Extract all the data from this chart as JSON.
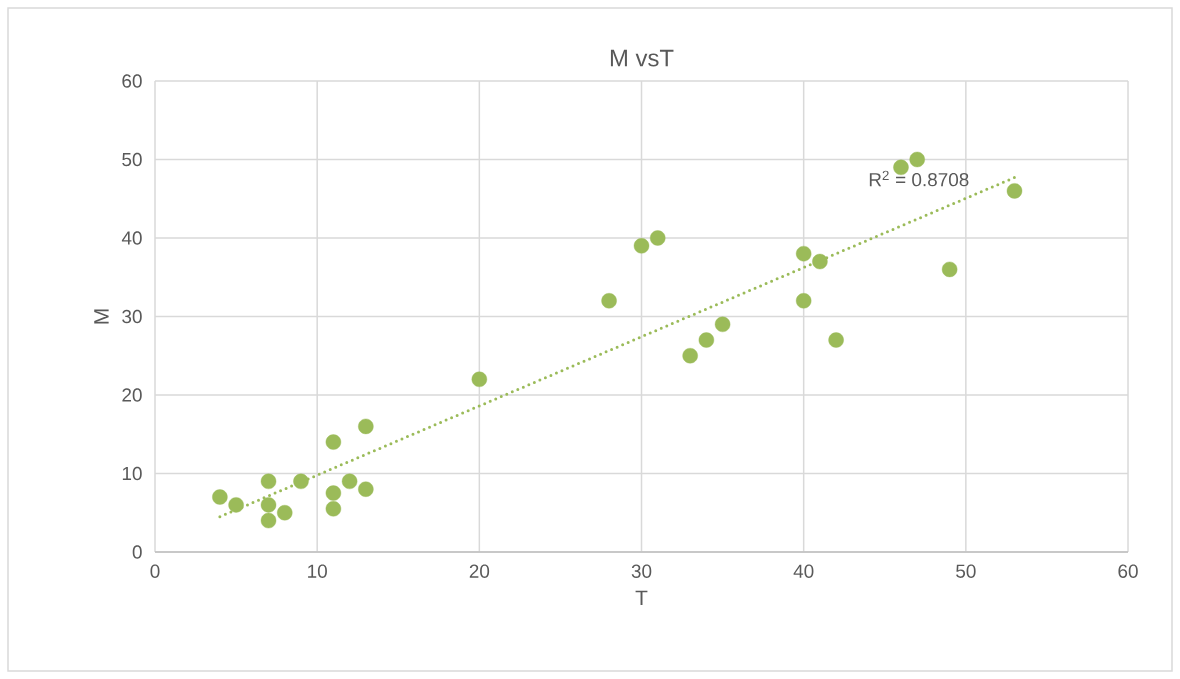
{
  "chart_data": {
    "type": "scatter",
    "title": "M vsT",
    "xlabel": "T",
    "ylabel": "M",
    "xlim": [
      0,
      60
    ],
    "ylim": [
      0,
      60
    ],
    "xticks": [
      0,
      10,
      20,
      30,
      40,
      50,
      60
    ],
    "yticks": [
      0,
      10,
      20,
      30,
      40,
      50,
      60
    ],
    "grid": true,
    "annotations": [
      "R$^{2}$ = 0.8708"
    ],
    "series": [
      {
        "color": "#9bbb59",
        "marker": "circle",
        "x": [
          4,
          5,
          7,
          7,
          7,
          8,
          9,
          11,
          11,
          11,
          12,
          13,
          13,
          20,
          28,
          30,
          31,
          33,
          34,
          35,
          40,
          40,
          41,
          42,
          46,
          47,
          49,
          53
        ],
        "values": [
          7,
          6,
          9,
          6,
          4,
          5,
          9,
          14,
          7.5,
          5.5,
          9,
          16,
          8,
          22,
          32,
          39,
          40,
          25,
          27,
          29,
          38,
          32,
          37,
          27,
          49,
          50,
          36,
          46
        ]
      },
      {
        "type": "line",
        "color": "#9bbb59",
        "line_style": "dotted",
        "marker": "none",
        "x": [
          4,
          53
        ],
        "values": [
          4.5,
          47.7
        ]
      }
    ]
  }
}
